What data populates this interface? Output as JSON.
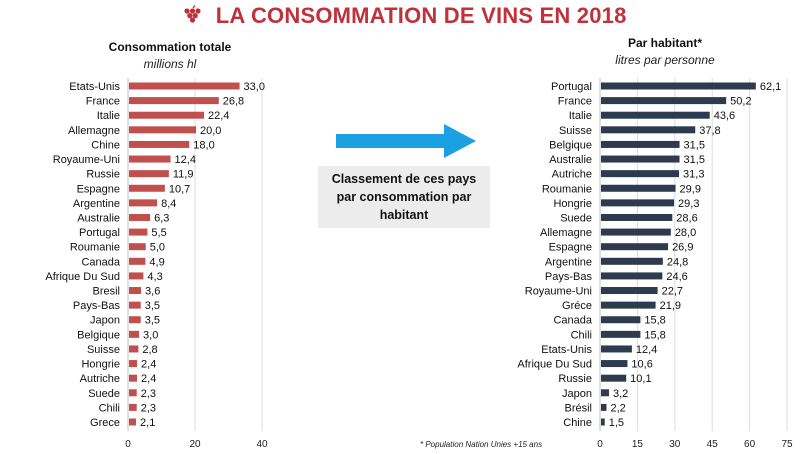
{
  "page": {
    "title": "LA CONSOMMATION DE VINS EN 2018",
    "callout": "Classement de ces pays par consommation par habitant",
    "footnote": "* Population Nation Unies +15 ans",
    "colors": {
      "title": "#c0313b",
      "left_bars": "#c0504d",
      "right_bars": "#2e3b4e",
      "arrow": "#1ba1e2",
      "callout_bg": "#ececec"
    },
    "icons": {
      "title_icon": "grape-icon",
      "arrow_icon": "arrow-right-icon"
    }
  },
  "chart_data": [
    {
      "type": "bar",
      "orientation": "horizontal",
      "title": "Consommation totale",
      "subtitle": "millions hl",
      "categories": [
        "Etats-Unis",
        "France",
        "Italie",
        "Allemagne",
        "Chine",
        "Royaume-Uni",
        "Russie",
        "Espagne",
        "Argentine",
        "Australie",
        "Portugal",
        "Roumanie",
        "Canada",
        "Afrique Du Sud",
        "Bresil",
        "Pays-Bas",
        "Japon",
        "Belgique",
        "Suisse",
        "Hongrie",
        "Autriche",
        "Suede",
        "Chili",
        "Grece"
      ],
      "values": [
        33.0,
        26.8,
        22.4,
        20.0,
        18.0,
        12.4,
        11.9,
        10.7,
        8.4,
        6.3,
        5.5,
        5.0,
        4.9,
        4.3,
        3.6,
        3.5,
        3.5,
        3.0,
        2.8,
        2.4,
        2.4,
        2.3,
        2.3,
        2.1
      ],
      "value_labels": [
        "33,0",
        "26,8",
        "22,4",
        "20,0",
        "18,0",
        "12,4",
        "11,9",
        "10,7",
        "8,4",
        "6,3",
        "5,5",
        "5,0",
        "4,9",
        "4,3",
        "3,6",
        "3,5",
        "3,5",
        "3,0",
        "2,8",
        "2,4",
        "2,4",
        "2,3",
        "2,3",
        "2,1"
      ],
      "xlim": [
        0,
        40
      ],
      "xticks": [
        "0",
        "20",
        "40"
      ],
      "grid": "vertical",
      "color": "#c0504d"
    },
    {
      "type": "bar",
      "orientation": "horizontal",
      "title": "Par habitant*",
      "subtitle": "litres par personne",
      "categories": [
        "Portugal",
        "France",
        "Italie",
        "Suisse",
        "Belgique",
        "Australie",
        "Autriche",
        "Roumanie",
        "Hongrie",
        "Suede",
        "Allemagne",
        "Espagne",
        "Argentine",
        "Pays-Bas",
        "Royaume-Uni",
        "Gréce",
        "Canada",
        "Chili",
        "Etats-Unis",
        "Afrique Du Sud",
        "Russie",
        "Japon",
        "Brésil",
        "Chine"
      ],
      "values": [
        62.1,
        50.2,
        43.6,
        37.8,
        31.5,
        31.5,
        31.3,
        29.9,
        29.3,
        28.6,
        28.0,
        26.9,
        24.8,
        24.6,
        22.7,
        21.9,
        15.8,
        15.8,
        12.4,
        10.6,
        10.1,
        3.2,
        2.2,
        1.5
      ],
      "value_labels": [
        "62,1",
        "50,2",
        "43,6",
        "37,8",
        "31,5",
        "31,5",
        "31,3",
        "29,9",
        "29,3",
        "28,6",
        "28,0",
        "26,9",
        "24,8",
        "24,6",
        "22,7",
        "21,9",
        "15,8",
        "15,8",
        "12,4",
        "10,6",
        "10,1",
        "3,2",
        "2,2",
        "1,5"
      ],
      "xlim": [
        0,
        75
      ],
      "xticks": [
        "0",
        "15",
        "30",
        "45",
        "60",
        "75"
      ],
      "grid": "vertical",
      "color": "#2e3b4e"
    }
  ]
}
